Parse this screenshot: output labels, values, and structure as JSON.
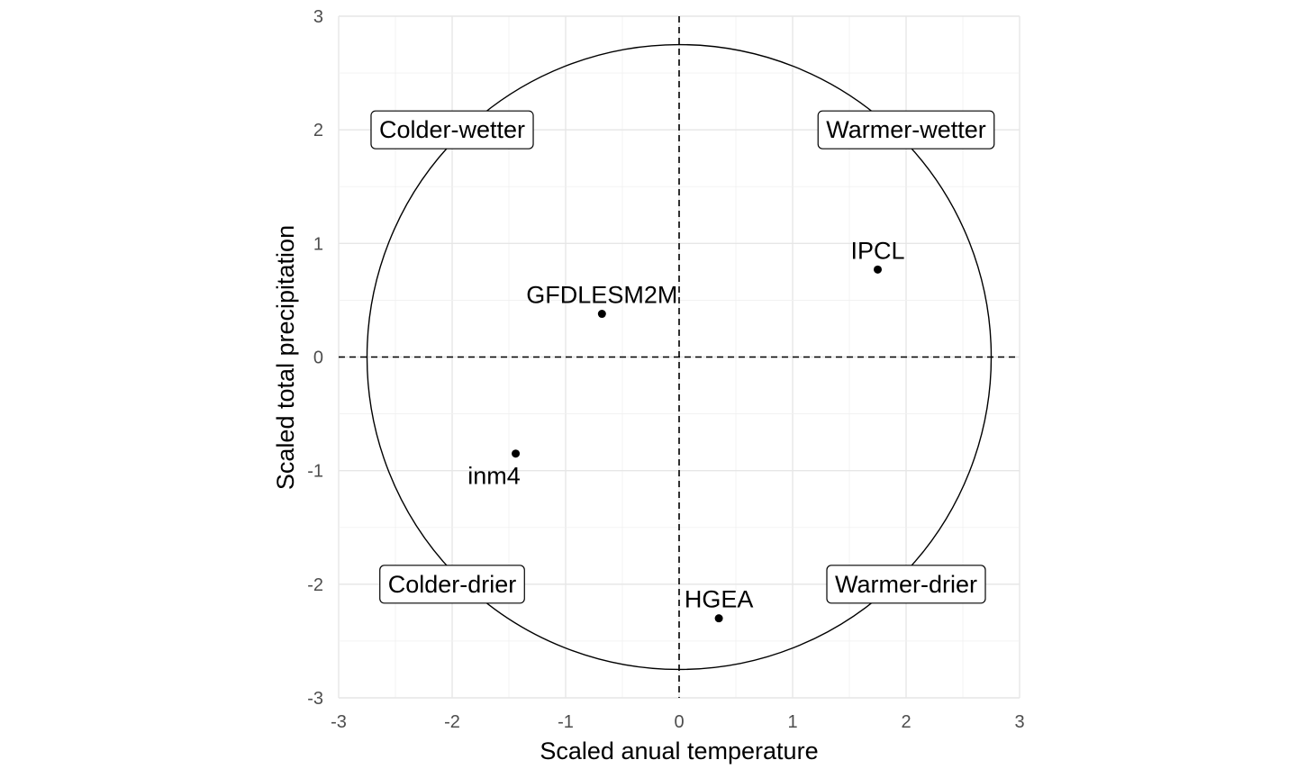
{
  "chart_data": {
    "type": "scatter",
    "title": "",
    "xlabel": "Scaled anual temperature",
    "ylabel": "Scaled total precipitation",
    "xlim": [
      -3,
      3
    ],
    "ylim": [
      -3,
      3
    ],
    "xticks": [
      "-3",
      "-2",
      "-1",
      "0",
      "1",
      "2",
      "3"
    ],
    "yticks": [
      "-3",
      "-2",
      "-1",
      "0",
      "1",
      "2",
      "3"
    ],
    "grid": true,
    "reference_lines": {
      "x": 0,
      "y": 0,
      "style": "dashed"
    },
    "circle": {
      "center": [
        0,
        0
      ],
      "radius": 2.75
    },
    "points": [
      {
        "label": "IPCL",
        "x": 1.75,
        "y": 0.77,
        "label_pos": "above"
      },
      {
        "label": "GFDLESM2M",
        "x": -0.68,
        "y": 0.38,
        "label_pos": "above"
      },
      {
        "label": "inm4",
        "x": -1.44,
        "y": -0.85,
        "label_pos": "below-left"
      },
      {
        "label": "HGEA",
        "x": 0.35,
        "y": -2.3,
        "label_pos": "above"
      }
    ],
    "quadrant_labels": [
      {
        "text": "Colder-wetter",
        "x": -2.0,
        "y": 2.0
      },
      {
        "text": "Warmer-wetter",
        "x": 2.0,
        "y": 2.0
      },
      {
        "text": "Colder-drier",
        "x": -2.0,
        "y": -2.0
      },
      {
        "text": "Warmer-drier",
        "x": 2.0,
        "y": -2.0
      }
    ]
  }
}
